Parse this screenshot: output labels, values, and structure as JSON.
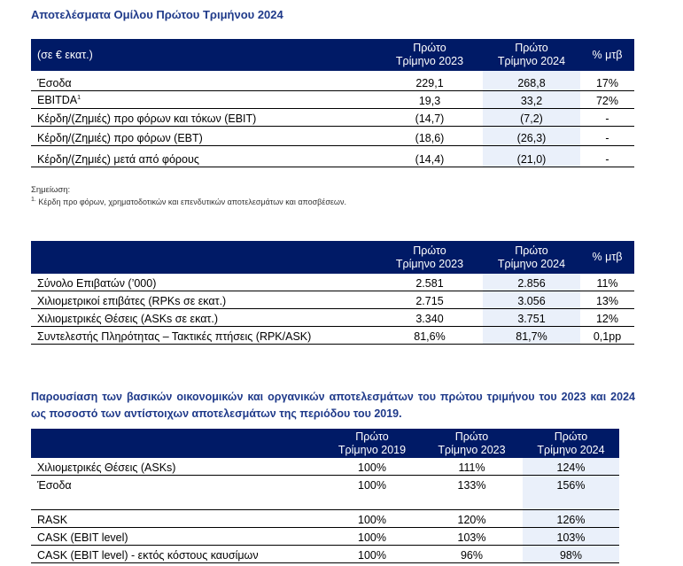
{
  "title": "Αποτελέσματα Ομίλου Πρώτου Τριμήνου 2024",
  "table1": {
    "header": {
      "label": "(σε € εκατ.)",
      "col1_line1": "Πρώτο",
      "col1_line2": "Τρίμηνο 2023",
      "col2_line1": "Πρώτο",
      "col2_line2": "Τρίμηνο 2024",
      "col3": "% μτβ"
    },
    "rows": [
      {
        "label": "Έσοδα",
        "v1": "229,1",
        "v2": "268,8",
        "v3": "17%"
      },
      {
        "label": "EBITDA",
        "sup": "1",
        "v1": "19,3",
        "v2": "33,2",
        "v3": "72%"
      },
      {
        "label": "Κέρδη/(Ζημιές) προ φόρων και τόκων (EBIT)",
        "v1": "(14,7)",
        "v2": "(7,2)",
        "v3": "-"
      },
      {
        "label": "Κέρδη/(Ζημιές) προ φόρων (EBT)",
        "v1": "(18,6)",
        "v2": "(26,3)",
        "v3": "-"
      },
      {
        "label": "Κέρδη/(Ζημιές) μετά από φόρους",
        "v1": "(14,4)",
        "v2": "(21,0)",
        "v3": "-"
      }
    ]
  },
  "note": {
    "heading": "Σημείωση:",
    "sup": "1.",
    "text": "Κέρδη προ φόρων, χρηματοδοτικών και επενδυτικών αποτελεσμάτων και αποσβέσεων."
  },
  "table2": {
    "header": {
      "col1_line1": "Πρώτο",
      "col1_line2": "Τρίμηνο 2023",
      "col2_line1": "Πρώτο",
      "col2_line2": "Τρίμηνο 2024",
      "col3": "% μτβ"
    },
    "rows": [
      {
        "label": "Σύνολο Επιβατών (’000)",
        "v1": "2.581",
        "v2": "2.856",
        "v3": "11%"
      },
      {
        "label": "Χιλιομετρικοί επιβάτες (RPKs σε εκατ.)",
        "v1": "2.715",
        "v2": "3.056",
        "v3": "13%"
      },
      {
        "label": "Χιλιομετρικές Θέσεις (ASKs σε εκατ.)",
        "v1": "3.340",
        "v2": "3.751",
        "v3": "12%"
      },
      {
        "label": "Συντελεστής Πληρότητας – Τακτικές πτήσεις (RPK/ASK)",
        "v1": "81,6%",
        "v2": "81,7%",
        "v3": "0,1pp"
      }
    ]
  },
  "paragraph": "Παρουσίαση των βασικών οικονομικών και οργανικών αποτελεσμάτων του πρώτου τριμήνου του 2023 και 2024 ως ποσοστό των αντίστοιχων αποτελεσμάτων της περιόδου του 2019.",
  "table3": {
    "header": {
      "col1_line1": "Πρώτο",
      "col1_line2": "Τρίμηνο 2019",
      "col2_line1": "Πρώτο",
      "col2_line2": "Τρίμηνο 2023",
      "col3_line1": "Πρώτο",
      "col3_line2": "Τρίμηνο 2024"
    },
    "rows": [
      {
        "label": "Χιλιομετρικές Θέσεις (ASKs)",
        "v1": "100%",
        "v2": "111%",
        "v3": "124%"
      },
      {
        "label": "Έσοδα",
        "v1": "100%",
        "v2": "133%",
        "v3": "156%"
      },
      {
        "label": "RASK",
        "v1": "100%",
        "v2": "120%",
        "v3": "126%"
      },
      {
        "label": "CASK (EBIT level)",
        "v1": "100%",
        "v2": "103%",
        "v3": "103%"
      },
      {
        "label": "CASK (EBIT level) - εκτός κόστους καυσίμων",
        "v1": "100%",
        "v2": "96%",
        "v3": "98%"
      }
    ]
  }
}
